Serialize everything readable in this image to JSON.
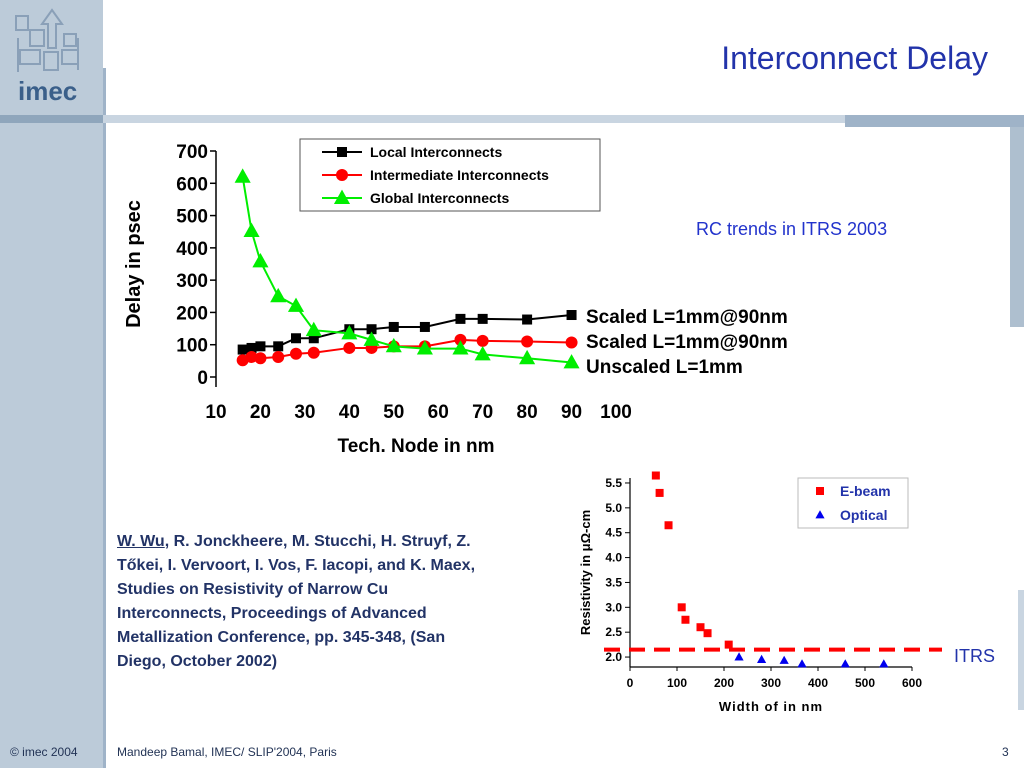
{
  "slide": {
    "logo_text": "imec",
    "title": "Interconnect Delay",
    "rc_note": "RC trends in ITRS 2003",
    "itrs_label": "ITRS",
    "citation_author": "W. Wu",
    "citation_rest": ", R. Jonckheere, M. Stucchi, H. Struyf, Z. Tőkei, I. Vervoort, I. Vos, F. Iacopi, and K. Maex, Studies on Resistivity of Narrow Cu Interconnects, Proceedings of Advanced Metallization Conference, pp. 345-348, (San Diego, October 2002)",
    "footer_left": "© imec 2004",
    "footer_mid": "Mandeep Bamal, IMEC/ SLIP'2004, Paris",
    "footer_right": "3"
  },
  "chart_data": [
    {
      "type": "line",
      "xlabel": "Tech. Node in nm",
      "ylabel": "Delay in psec",
      "xlim": [
        10,
        100
      ],
      "ylim": [
        0,
        700
      ],
      "xticks": [
        10,
        20,
        30,
        40,
        50,
        60,
        70,
        80,
        90,
        100
      ],
      "yticks": [
        0,
        100,
        200,
        300,
        400,
        500,
        600,
        700
      ],
      "legend_position": "top-center",
      "series": [
        {
          "name": "Local Interconnects",
          "color": "#000000",
          "marker": "square",
          "end_label": "Scaled L=1mm@90nm",
          "x": [
            16,
            18,
            20,
            24,
            28,
            32,
            40,
            45,
            50,
            57,
            65,
            70,
            80,
            90
          ],
          "y": [
            85,
            90,
            95,
            95,
            120,
            120,
            148,
            148,
            155,
            155,
            180,
            180,
            178,
            192
          ]
        },
        {
          "name": "Intermediate Interconnects",
          "color": "#ff0000",
          "marker": "circle",
          "end_label": "Scaled L=1mm@90nm",
          "x": [
            16,
            18,
            20,
            24,
            28,
            32,
            40,
            45,
            50,
            57,
            65,
            70,
            80,
            90
          ],
          "y": [
            52,
            62,
            58,
            62,
            72,
            75,
            90,
            90,
            95,
            95,
            115,
            112,
            110,
            107
          ]
        },
        {
          "name": "Global Interconnects",
          "color": "#00ee00",
          "marker": "triangle",
          "end_label": "Unscaled L=1mm",
          "x": [
            16,
            18,
            20,
            24,
            28,
            32,
            40,
            45,
            50,
            57,
            65,
            70,
            80,
            90
          ],
          "y": [
            620,
            452,
            358,
            250,
            220,
            145,
            135,
            115,
            95,
            88,
            88,
            70,
            58,
            45
          ]
        }
      ]
    },
    {
      "type": "scatter",
      "xlabel": "Width of in nm",
      "ylabel": "Resistivity in μΩ-cm",
      "xlim": [
        0,
        600
      ],
      "ylim": [
        1.8,
        5.6
      ],
      "xticks": [
        0,
        100,
        200,
        300,
        400,
        500,
        600
      ],
      "yticks": [
        2.0,
        2.5,
        3.0,
        3.5,
        4.0,
        4.5,
        5.0,
        5.5
      ],
      "legend_position": "top-right",
      "reference_line": {
        "label": "ITRS",
        "y": 2.15,
        "color": "#ff0000",
        "style": "dashed"
      },
      "series": [
        {
          "name": "E-beam",
          "color": "#ff0000",
          "marker": "square",
          "x": [
            55,
            63,
            82,
            110,
            118,
            150,
            165,
            210
          ],
          "y": [
            5.65,
            5.3,
            4.65,
            3.0,
            2.75,
            2.6,
            2.48,
            2.25
          ]
        },
        {
          "name": "Optical",
          "color": "#0000ee",
          "marker": "triangle",
          "x": [
            232,
            280,
            328,
            366,
            458,
            540
          ],
          "y": [
            2.0,
            1.95,
            1.93,
            1.86,
            1.86,
            1.86
          ]
        }
      ]
    }
  ]
}
